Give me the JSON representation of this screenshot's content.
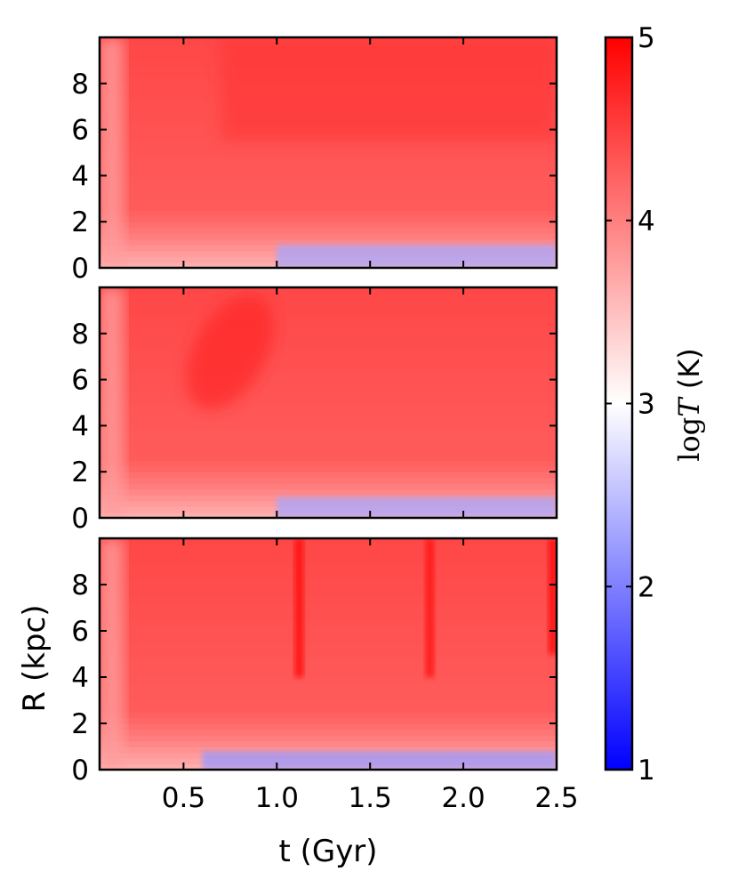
{
  "chart_data": [
    {
      "type": "heatmap",
      "panel": 1,
      "xlim": [
        0.05,
        2.5
      ],
      "ylim": [
        0,
        10
      ],
      "xticks": [
        0.5,
        1.0,
        1.5,
        2.0,
        2.5
      ],
      "yticks": [
        0,
        2,
        4,
        6,
        8
      ],
      "ytick_labels": [
        "0",
        "2",
        "4",
        "6",
        "8"
      ],
      "xtick_labels_shown": false,
      "z_range": [
        1,
        5
      ],
      "features": {
        "hot_band": {
          "t_start": 0.7,
          "t_end": 2.5,
          "R_min": 5.5,
          "R_max": 10,
          "logT": 4.6
        },
        "cold_core": {
          "R_max": 1.0,
          "t_start": 1.0,
          "t_end": 2.5,
          "logT_min": 2.3
        }
      }
    },
    {
      "type": "heatmap",
      "panel": 2,
      "xlim": [
        0.05,
        2.5
      ],
      "ylim": [
        0,
        10
      ],
      "xticks": [
        0.5,
        1.0,
        1.5,
        2.0,
        2.5
      ],
      "yticks": [
        0,
        2,
        4,
        6,
        8
      ],
      "ytick_labels": [
        "0",
        "2",
        "4",
        "6",
        "8"
      ],
      "xtick_labels_shown": false,
      "z_range": [
        1,
        5
      ],
      "features": {
        "hot_blob": {
          "t_center": 0.75,
          "R_center": 7.2,
          "logT": 4.7
        },
        "cold_core": {
          "R_max": 0.9,
          "t_start": 1.0,
          "t_end": 2.5,
          "logT_min": 2.3
        }
      }
    },
    {
      "type": "heatmap",
      "panel": 3,
      "xlim": [
        0.05,
        2.5
      ],
      "ylim": [
        0,
        10
      ],
      "xticks": [
        0.5,
        1.0,
        1.5,
        2.0,
        2.5
      ],
      "xtick_labels": [
        "0.5",
        "1.0",
        "1.5",
        "2.0",
        "2.5"
      ],
      "yticks": [
        0,
        2,
        4,
        6,
        8
      ],
      "ytick_labels": [
        "0",
        "2",
        "4",
        "6",
        "8"
      ],
      "xtick_labels_shown": true,
      "z_range": [
        1,
        5
      ],
      "features": {
        "hot_streaks": [
          {
            "t": 1.12,
            "R_min": 4.0,
            "R_max": 10,
            "logT": 4.9
          },
          {
            "t": 1.82,
            "R_min": 4.0,
            "R_max": 10,
            "logT": 4.85
          },
          {
            "t": 2.48,
            "R_min": 5.0,
            "R_max": 10,
            "logT": 4.9
          }
        ],
        "cold_core": {
          "R_max": 0.8,
          "t_start": 0.6,
          "t_end": 2.5,
          "logT_min": 2.2
        }
      }
    }
  ],
  "axes": {
    "xlabel": "t (Gyr)",
    "ylabel": "R (kpc)"
  },
  "colorbar": {
    "label_prefix": "log",
    "label_var": "T",
    "label_suffix": " (K)",
    "min": 1,
    "max": 5,
    "ticks": [
      1,
      2,
      3,
      4,
      5
    ],
    "tick_labels": [
      "1",
      "2",
      "3",
      "4",
      "5"
    ],
    "colormap": "bwr",
    "color_low": "#0000ff",
    "color_mid": "#ffffff",
    "color_high": "#ff0000"
  }
}
